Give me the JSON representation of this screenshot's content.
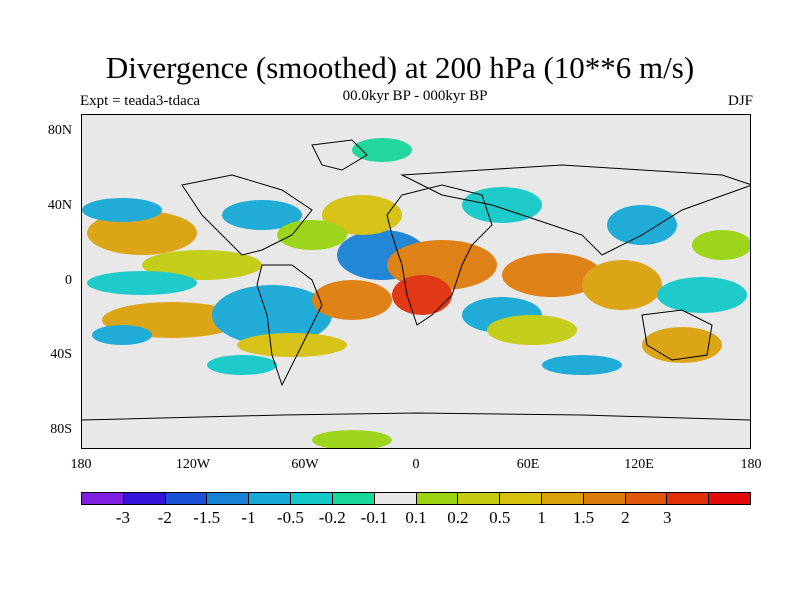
{
  "title": "Divergence (smoothed) at 200 hPa (10**6 m/s)",
  "experiment": "Expt = teada3-tdaca",
  "period": "00.0kyr BP - 000kyr BP",
  "season": "DJF",
  "lat_labels": [
    "80N",
    "40N",
    "0",
    "40S",
    "80S"
  ],
  "lon_labels": [
    "180",
    "120W",
    "60W",
    "0",
    "60E",
    "120E",
    "180"
  ],
  "colorbar": {
    "colors": [
      "#7f1fe0",
      "#3414d8",
      "#1b4fd4",
      "#1a82d6",
      "#16a9d6",
      "#14c9c9",
      "#18d79b",
      "#e8e8e8",
      "#9ad312",
      "#c3cc10",
      "#d6c10d",
      "#dca20c",
      "#de7c0b",
      "#df550a",
      "#e12f0a",
      "#e30a0a"
    ],
    "labels": [
      "-3",
      "-2",
      "-1.5",
      "-1",
      "-0.5",
      "-0.2",
      "-0.1",
      "0.1",
      "0.2",
      "0.5",
      "1",
      "1.5",
      "2",
      "3"
    ]
  }
}
